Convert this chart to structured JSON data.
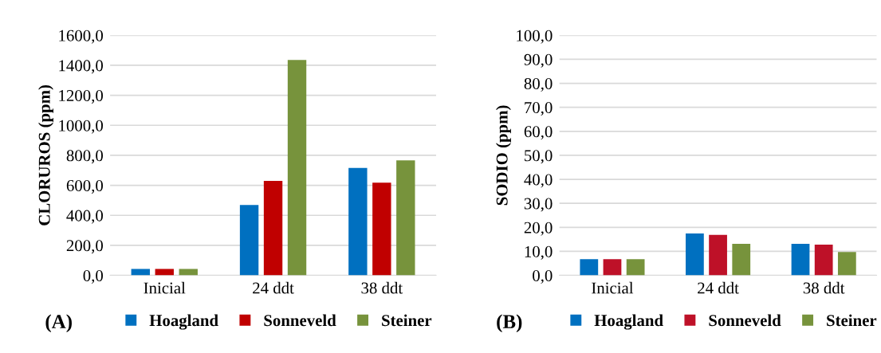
{
  "chart_data": [
    {
      "type": "bar",
      "ylabel": "CLORUROS (ppm)",
      "categories": [
        "Inicial",
        "24 ddt",
        "38 ddt"
      ],
      "series": [
        {
          "name": "Hoagland",
          "color": "#0070c0",
          "values": [
            43,
            469,
            716
          ]
        },
        {
          "name": "Sonneveld",
          "color": "#c00000",
          "values": [
            43,
            630,
            618
          ]
        },
        {
          "name": "Steiner",
          "color": "#77933c",
          "values": [
            43,
            1435,
            767
          ]
        }
      ],
      "ylim": [
        0,
        1600
      ],
      "yticks": [
        {
          "value": 0,
          "label": "0,0"
        },
        {
          "value": 200,
          "label": "200,0"
        },
        {
          "value": 400,
          "label": "400,0"
        },
        {
          "value": 600,
          "label": "600,0"
        },
        {
          "value": 800,
          "label": "800,0"
        },
        {
          "value": 1000,
          "label": "1000,0"
        },
        {
          "value": 1200,
          "label": "1200,0"
        },
        {
          "value": 1400,
          "label": "1400,0"
        },
        {
          "value": 1600,
          "label": "1600,0"
        }
      ],
      "grid": "y",
      "legend": "bottom",
      "annotations": [
        "(A)"
      ]
    },
    {
      "type": "bar",
      "ylabel": "SODIO (ppm)",
      "categories": [
        "Inicial",
        "24 ddt",
        "38 ddt"
      ],
      "series": [
        {
          "name": "Hoagland",
          "color": "#0070c0",
          "values": [
            6.7,
            17.4,
            13.1
          ]
        },
        {
          "name": "Sonneveld",
          "color": "#be1128",
          "values": [
            6.7,
            16.9,
            12.8
          ]
        },
        {
          "name": "Steiner",
          "color": "#77933c",
          "values": [
            6.7,
            13.1,
            9.7
          ]
        }
      ],
      "ylim": [
        0,
        100
      ],
      "yticks": [
        {
          "value": 0,
          "label": "0,0"
        },
        {
          "value": 10,
          "label": "10,0"
        },
        {
          "value": 20,
          "label": "20,0"
        },
        {
          "value": 30,
          "label": "30,0"
        },
        {
          "value": 40,
          "label": "40,0"
        },
        {
          "value": 50,
          "label": "50,0"
        },
        {
          "value": 60,
          "label": "60,0"
        },
        {
          "value": 70,
          "label": "70,0"
        },
        {
          "value": 80,
          "label": "80,0"
        },
        {
          "value": 90,
          "label": "90,0"
        },
        {
          "value": 100,
          "label": "100,0"
        }
      ],
      "grid": "y",
      "legend": "bottom",
      "annotations": [
        "(B)"
      ]
    }
  ]
}
